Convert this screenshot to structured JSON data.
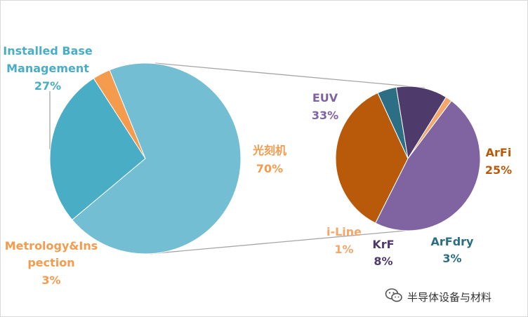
{
  "chart_data": {
    "type": "pie",
    "title": "",
    "main_pie": {
      "slices": [
        {
          "name": "光刻机",
          "value": 70,
          "label_value": "70%",
          "color": "#73BED3"
        },
        {
          "name": "Installed Base Management",
          "name_line1": "Installed Base",
          "name_line2": "Management",
          "value": 27,
          "label_value": "27%",
          "color": "#4AADC6"
        },
        {
          "name": "Metrology&Inspection",
          "name_line1": "Metrology&Ins",
          "name_line2": "pection",
          "value": 3,
          "label_value": "3%",
          "color": "#F59B4E"
        }
      ]
    },
    "sub_pie": {
      "breakdown_of": "光刻机",
      "slices": [
        {
          "name": "EUV",
          "value": 33,
          "label_value": "33%",
          "color": "#8064A2"
        },
        {
          "name": "ArFi",
          "value": 25,
          "label_value": "25%",
          "color": "#B95A0A"
        },
        {
          "name": "ArFdry",
          "value": 3,
          "label_value": "3%",
          "color": "#2C6E83"
        },
        {
          "name": "KrF",
          "value": 8,
          "label_value": "8%",
          "color": "#4E3A6B"
        },
        {
          "name": "i-Line",
          "value": 1,
          "label_value": "1%",
          "color": "#F5A66B"
        }
      ]
    },
    "legend": "none",
    "grid": false
  },
  "watermark": {
    "text": "半导体设备与材料",
    "icon": "wechat-icon"
  }
}
